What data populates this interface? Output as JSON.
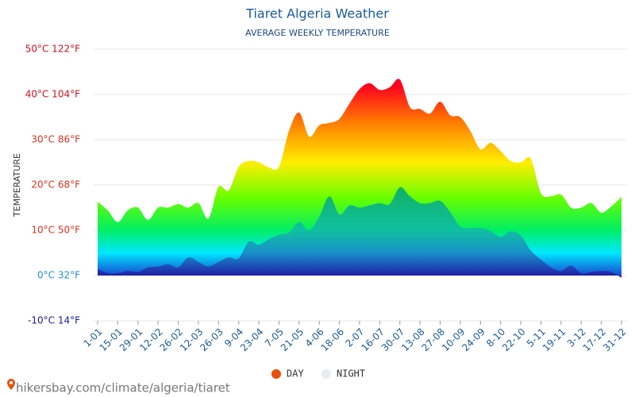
{
  "chart_data": {
    "type": "area",
    "title": "Tiaret Algeria Weather",
    "subtitle": "AVERAGE WEEKLY TEMPERATURE",
    "y_label": "TEMPERATURE",
    "footer": "hikersbay.com/climate/algeria/tiaret",
    "categories": [
      "1-01",
      null,
      "15-01",
      null,
      "29-01",
      null,
      "12-02",
      null,
      "26-02",
      null,
      "12-03",
      null,
      "26-03",
      null,
      "9-04",
      null,
      "23-04",
      null,
      "7-05",
      null,
      "21-05",
      null,
      "4-06",
      null,
      "18-06",
      null,
      "2-07",
      null,
      "16-07",
      null,
      "30-07",
      null,
      "13-08",
      null,
      "27-08",
      null,
      "10-09",
      null,
      "24-09",
      null,
      "8-10",
      null,
      "22-10",
      null,
      "5-11",
      null,
      "19-11",
      null,
      "3-12",
      null,
      "17-12",
      null,
      "31-12"
    ],
    "series": [
      {
        "name": "DAY",
        "color": "#e8510b",
        "values": [
          16.3,
          14.4,
          11.8,
          14.4,
          15,
          12.3,
          15,
          15,
          15.8,
          15,
          16,
          12.6,
          19.6,
          18.8,
          24,
          25.3,
          25,
          23.9,
          24,
          32,
          36,
          30.7,
          33.2,
          33.7,
          34.6,
          38,
          41.2,
          42.5,
          41,
          41.6,
          43.3,
          37.2,
          36.8,
          35.8,
          38.4,
          35.4,
          35,
          31.9,
          27.9,
          29.3,
          27.5,
          25.3,
          25,
          25.8,
          18.2,
          17.5,
          17.9,
          15,
          15,
          16,
          13.9,
          15.3,
          17.4
        ]
      },
      {
        "name": "NIGHT",
        "color": "#e4edf2",
        "values": [
          1.5,
          0.5,
          0.5,
          1,
          0.8,
          1.8,
          2,
          2.5,
          1.8,
          4,
          3,
          2,
          3,
          4,
          3.8,
          7.5,
          6.8,
          8,
          9,
          9.5,
          11.8,
          10,
          13,
          17.5,
          13.5,
          15.5,
          15,
          15.5,
          16,
          15.8,
          19.5,
          17.5,
          16,
          16,
          16.5,
          14,
          10.8,
          10.5,
          10.5,
          9.8,
          8.5,
          9.8,
          8.8,
          5.5,
          3.5,
          1.8,
          1,
          2.2,
          0.5,
          0.8,
          1,
          0.8,
          -0.5
        ]
      }
    ],
    "ylim": [
      -10,
      50
    ],
    "yticks": [
      {
        "value": -10,
        "label": "-10°C 14°F"
      },
      {
        "value": 0,
        "label": "0°C 32°F"
      },
      {
        "value": 10,
        "label": "10°C 50°F"
      },
      {
        "value": 20,
        "label": "20°C 68°F"
      },
      {
        "value": 30,
        "label": "30°C 86°F"
      },
      {
        "value": 40,
        "label": "40°C 104°F"
      },
      {
        "value": 50,
        "label": "50°C 122°F"
      }
    ],
    "ytick_colors": [
      "#1a1aa0",
      "#1e8fd6",
      "#e0301e",
      "#e0301e",
      "#e0301e",
      "#d0101e",
      "#d0101e"
    ],
    "grid": true
  }
}
